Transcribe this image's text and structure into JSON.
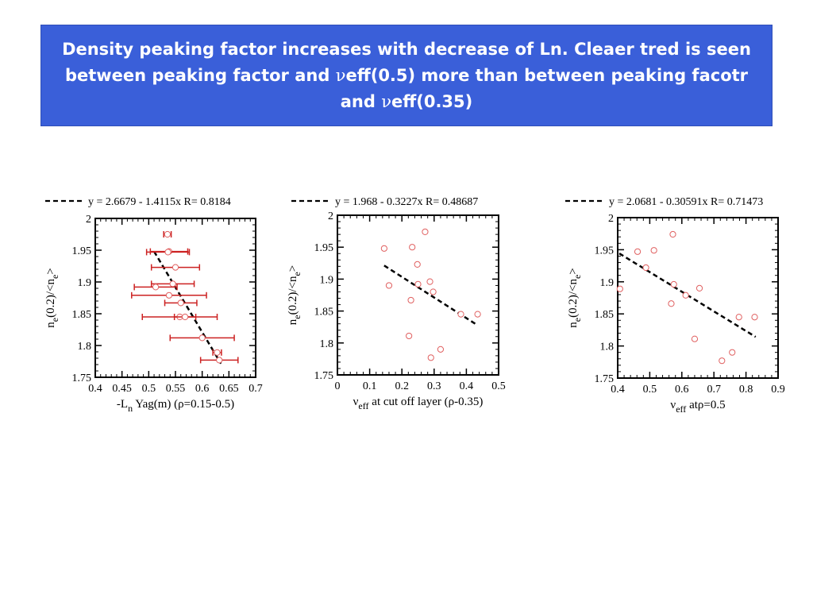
{
  "title_parts": {
    "part1": "Density peaking factor increases with decrease of Ln. Cleaer tred is seen between peaking factor and ",
    "nu1": "ν",
    "part2": "eff(0.5) more than between peaking facotr and ",
    "nu2": "ν",
    "part3": "eff(0.35)"
  },
  "colors": {
    "title_bg": "#3a5fd9",
    "marker": "#e06060",
    "errorbar": "#cc2222",
    "fit": "#000000"
  },
  "chart_data": [
    {
      "type": "scatter",
      "legend": "y = 2.6679 - 1.4115x   R= 0.8184",
      "ylabel": {
        "base": "n",
        "sub1": "e",
        "mid": "(0.2)/<n",
        "sub2": "e",
        "end": ">"
      },
      "xlabel": {
        "pre": "-L",
        "sub": "n",
        "post": " Yag(m) (ρ=0.15-0.5)"
      },
      "xlim": [
        0.4,
        0.7
      ],
      "ylim": [
        1.75,
        2.0
      ],
      "xticks": [
        "0.4",
        "0.45",
        "0.5",
        "0.55",
        "0.6",
        "0.65",
        "0.7"
      ],
      "yticks": [
        "1.75",
        "1.8",
        "1.85",
        "1.9",
        "1.95",
        "2"
      ],
      "fit": {
        "intercept": 2.6679,
        "slope": -1.4115,
        "x_range": [
          0.51,
          0.635
        ]
      },
      "points": [
        {
          "x": 0.535,
          "y": 1.975,
          "xerr": 0.007
        },
        {
          "x": 0.538,
          "y": 1.948,
          "xerr": 0.035
        },
        {
          "x": 0.536,
          "y": 1.947,
          "xerr": 0.04
        },
        {
          "x": 0.55,
          "y": 1.923,
          "xerr": 0.045
        },
        {
          "x": 0.545,
          "y": 1.897,
          "xerr": 0.04
        },
        {
          "x": 0.513,
          "y": 1.892,
          "xerr": 0.04
        },
        {
          "x": 0.538,
          "y": 1.879,
          "xerr": 0.07
        },
        {
          "x": 0.56,
          "y": 1.867,
          "xerr": 0.03
        },
        {
          "x": 0.558,
          "y": 1.845,
          "xerr": 0.07
        },
        {
          "x": 0.568,
          "y": 1.845,
          "xerr": 0.02
        },
        {
          "x": 0.6,
          "y": 1.812,
          "xerr": 0.06
        },
        {
          "x": 0.628,
          "y": 1.789,
          "xerr": 0.008
        },
        {
          "x": 0.632,
          "y": 1.777,
          "xerr": 0.035
        }
      ]
    },
    {
      "type": "scatter",
      "legend": "y = 1.968 - 0.3227x   R= 0.48687",
      "ylabel": {
        "base": "n",
        "sub1": "e",
        "mid": "(0.2)/<n",
        "sub2": "e",
        "end": ">"
      },
      "xlabel": {
        "pre": "ν",
        "sub": "eff",
        "post": " at cut off layer (ρ-0.35)"
      },
      "xlim": [
        0,
        0.5
      ],
      "ylim": [
        1.75,
        2.0
      ],
      "xticks": [
        "0",
        "0.1",
        "0.2",
        "0.3",
        "0.4",
        "0.5"
      ],
      "yticks": [
        "1.75",
        "1.8",
        "1.85",
        "1.9",
        "1.95",
        "2"
      ],
      "fit": {
        "intercept": 1.968,
        "slope": -0.3227,
        "x_range": [
          0.145,
          0.435
        ]
      },
      "points": [
        {
          "x": 0.272,
          "y": 1.974
        },
        {
          "x": 0.145,
          "y": 1.948
        },
        {
          "x": 0.232,
          "y": 1.95
        },
        {
          "x": 0.248,
          "y": 1.923
        },
        {
          "x": 0.16,
          "y": 1.89
        },
        {
          "x": 0.25,
          "y": 1.892
        },
        {
          "x": 0.287,
          "y": 1.896
        },
        {
          "x": 0.297,
          "y": 1.88
        },
        {
          "x": 0.228,
          "y": 1.867
        },
        {
          "x": 0.383,
          "y": 1.845
        },
        {
          "x": 0.435,
          "y": 1.845
        },
        {
          "x": 0.222,
          "y": 1.811
        },
        {
          "x": 0.32,
          "y": 1.79
        },
        {
          "x": 0.29,
          "y": 1.777
        }
      ]
    },
    {
      "type": "scatter",
      "legend": "y = 2.0681 - 0.30591x   R= 0.71473",
      "ylabel": {
        "base": "n",
        "sub1": "e",
        "mid": "(0.2)/<n",
        "sub2": "e",
        "end": ">"
      },
      "xlabel": {
        "pre": "ν",
        "sub": "eff",
        "post": " atρ=0.5"
      },
      "xlim": [
        0.4,
        0.9
      ],
      "ylim": [
        1.75,
        2.0
      ],
      "xticks": [
        "0.4",
        "0.5",
        "0.6",
        "0.7",
        "0.8",
        "0.9"
      ],
      "yticks": [
        "1.75",
        "1.8",
        "1.85",
        "1.9",
        "1.95",
        "2"
      ],
      "fit": {
        "intercept": 2.0681,
        "slope": -0.30591,
        "x_range": [
          0.405,
          0.83
        ]
      },
      "points": [
        {
          "x": 0.572,
          "y": 1.974
        },
        {
          "x": 0.462,
          "y": 1.947
        },
        {
          "x": 0.513,
          "y": 1.949
        },
        {
          "x": 0.488,
          "y": 1.922
        },
        {
          "x": 0.575,
          "y": 1.896
        },
        {
          "x": 0.655,
          "y": 1.89
        },
        {
          "x": 0.407,
          "y": 1.889
        },
        {
          "x": 0.612,
          "y": 1.879
        },
        {
          "x": 0.567,
          "y": 1.866
        },
        {
          "x": 0.778,
          "y": 1.845
        },
        {
          "x": 0.827,
          "y": 1.845
        },
        {
          "x": 0.64,
          "y": 1.811
        },
        {
          "x": 0.757,
          "y": 1.79
        },
        {
          "x": 0.725,
          "y": 1.777
        }
      ]
    }
  ]
}
